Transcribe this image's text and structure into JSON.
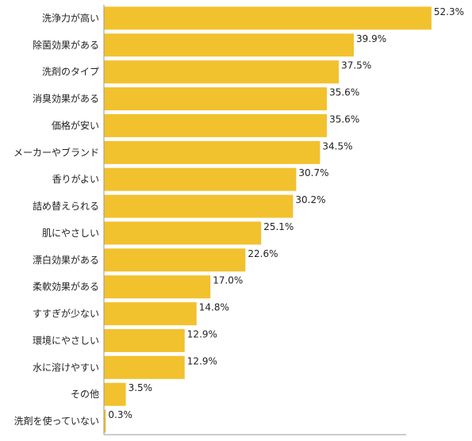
{
  "chart_data": {
    "type": "bar",
    "orientation": "horizontal",
    "categories": [
      "洗浄力が高い",
      "除菌効果がある",
      "洗剤のタイプ",
      "消臭効果がある",
      "価格が安い",
      "メーカーやブランド",
      "香りがよい",
      "詰め替えられる",
      "肌にやさしい",
      "漂白効果がある",
      "柔軟効果がある",
      "すすぎが少ない",
      "環境にやさしい",
      "水に溶けやすい",
      "その他",
      "洗剤を使っていない"
    ],
    "values": [
      52.3,
      39.9,
      37.5,
      35.6,
      35.6,
      34.5,
      30.7,
      30.2,
      25.1,
      22.6,
      17.0,
      14.8,
      12.9,
      12.9,
      3.5,
      0.3
    ],
    "value_labels": [
      "52.3%",
      "39.9%",
      "37.5%",
      "35.6%",
      "35.6%",
      "34.5%",
      "30.7%",
      "30.2%",
      "25.1%",
      "22.6%",
      "17.0%",
      "14.8%",
      "12.9%",
      "12.9%",
      "3.5%",
      "0.3%"
    ],
    "bar_color": "#F2C12E",
    "axis_color": "#999999",
    "xlim": [
      0,
      57
    ],
    "grid": false,
    "legend": "none"
  }
}
